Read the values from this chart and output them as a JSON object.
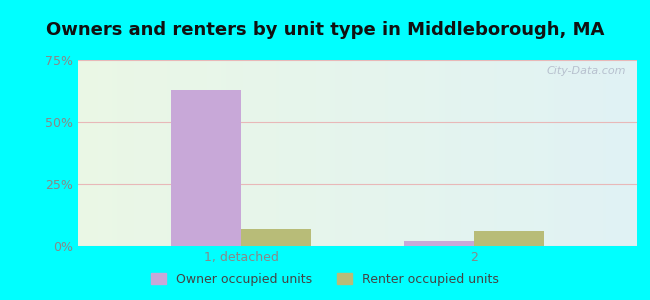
{
  "title": "Owners and renters by unit type in Middleborough, MA",
  "categories": [
    "1, detached",
    "2"
  ],
  "owner_values": [
    63,
    2
  ],
  "renter_values": [
    7,
    6
  ],
  "owner_color": "#c8a8d8",
  "renter_color": "#b8bc78",
  "ylim": [
    0,
    75
  ],
  "yticks": [
    0,
    25,
    50,
    75
  ],
  "ytick_labels": [
    "0%",
    "25%",
    "50%",
    "75%"
  ],
  "bar_width": 0.3,
  "title_fontsize": 13,
  "legend_labels": [
    "Owner occupied units",
    "Renter occupied units"
  ],
  "watermark": "City-Data.com",
  "outer_background": "#00ffff",
  "grid_color": "#e8b8b8",
  "tick_color": "#888888"
}
